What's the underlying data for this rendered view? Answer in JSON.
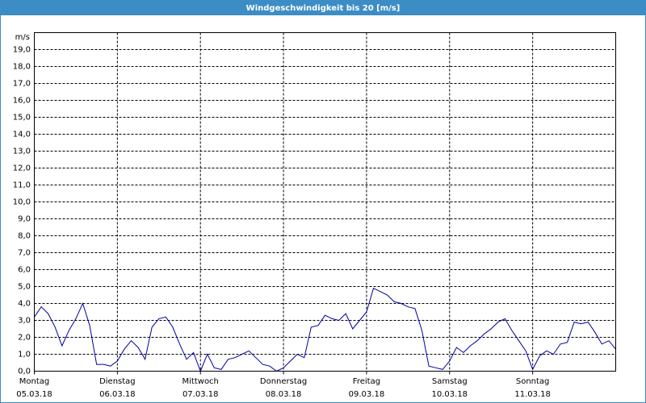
{
  "chart_data": {
    "type": "line",
    "title": "Windgeschwindigkeit bis 20 [m/s]",
    "y_label": "m/s",
    "x": [
      0,
      2,
      4,
      6,
      8,
      10,
      12,
      14,
      16,
      18,
      20,
      22,
      24,
      26,
      28,
      30,
      32,
      34,
      36,
      38,
      40,
      42,
      44,
      46,
      48,
      50,
      52,
      54,
      56,
      58,
      60,
      62,
      64,
      66,
      68,
      70,
      72,
      74,
      76,
      78,
      80,
      82,
      84,
      86,
      88,
      90,
      92,
      94,
      96,
      98,
      100,
      102,
      104,
      106,
      108,
      110,
      112,
      114,
      116,
      118,
      120,
      122,
      124,
      126,
      128,
      130,
      132,
      134,
      136,
      138,
      140,
      142,
      144,
      146,
      148,
      150,
      152,
      154,
      156,
      158,
      160,
      162,
      164,
      166,
      168
    ],
    "series": [
      {
        "color": "#0000a0",
        "values": [
          3.2,
          3.8,
          3.4,
          2.6,
          1.5,
          2.4,
          3.1,
          4.0,
          2.7,
          0.4,
          0.4,
          0.3,
          0.6,
          1.3,
          1.8,
          1.4,
          0.7,
          2.6,
          3.1,
          3.2,
          2.6,
          1.6,
          0.7,
          1.1,
          0.0,
          1.0,
          0.2,
          0.1,
          0.7,
          0.8,
          1.0,
          1.2,
          0.8,
          0.4,
          0.3,
          0.0,
          0.2,
          0.6,
          1.0,
          0.8,
          2.6,
          2.7,
          3.3,
          3.1,
          3.0,
          3.4,
          2.5,
          3.0,
          3.5,
          4.9,
          4.7,
          4.5,
          4.1,
          4.0,
          3.8,
          3.7,
          2.4,
          0.3,
          0.2,
          0.1,
          0.6,
          1.4,
          1.1,
          1.5,
          1.8,
          2.2,
          2.5,
          2.9,
          3.1,
          2.4,
          1.8,
          1.2,
          0.1,
          0.9,
          1.2,
          1.0,
          1.6,
          1.7,
          2.9,
          2.8,
          2.9,
          2.3,
          1.6,
          1.8,
          1.3
        ]
      }
    ],
    "xlim": [
      0,
      168
    ],
    "xticks": [
      {
        "value": 0,
        "label": "Montag"
      },
      {
        "value": 24,
        "label": "Dienstag"
      },
      {
        "value": 48,
        "label": "Mittwoch"
      },
      {
        "value": 72,
        "label": "Donnerstag"
      },
      {
        "value": 96,
        "label": "Freitag"
      },
      {
        "value": 120,
        "label": "Samstag"
      },
      {
        "value": 144,
        "label": "Sonntag"
      }
    ],
    "xtick_dates": [
      "05.03.18",
      "06.03.18",
      "07.03.18",
      "08.03.18",
      "09.03.18",
      "10.03.18",
      "11.03.18"
    ],
    "ylim": [
      0,
      20
    ],
    "yticks": [
      {
        "value": 0,
        "label": "0,0"
      },
      {
        "value": 1,
        "label": "1,0"
      },
      {
        "value": 2,
        "label": "2,0"
      },
      {
        "value": 3,
        "label": "3,0"
      },
      {
        "value": 4,
        "label": "4,0"
      },
      {
        "value": 5,
        "label": "5,0"
      },
      {
        "value": 6,
        "label": "6,0"
      },
      {
        "value": 7,
        "label": "7,0"
      },
      {
        "value": 8,
        "label": "8,0"
      },
      {
        "value": 9,
        "label": "9,0"
      },
      {
        "value": 10,
        "label": "10,0"
      },
      {
        "value": 11,
        "label": "11,0"
      },
      {
        "value": 12,
        "label": "12,0"
      },
      {
        "value": 13,
        "label": "13,0"
      },
      {
        "value": 14,
        "label": "14,0"
      },
      {
        "value": 15,
        "label": "15,0"
      },
      {
        "value": 16,
        "label": "16,0"
      },
      {
        "value": 17,
        "label": "17,0"
      },
      {
        "value": 18,
        "label": "18,0"
      },
      {
        "value": 19,
        "label": "19,0"
      }
    ],
    "grid": true
  }
}
